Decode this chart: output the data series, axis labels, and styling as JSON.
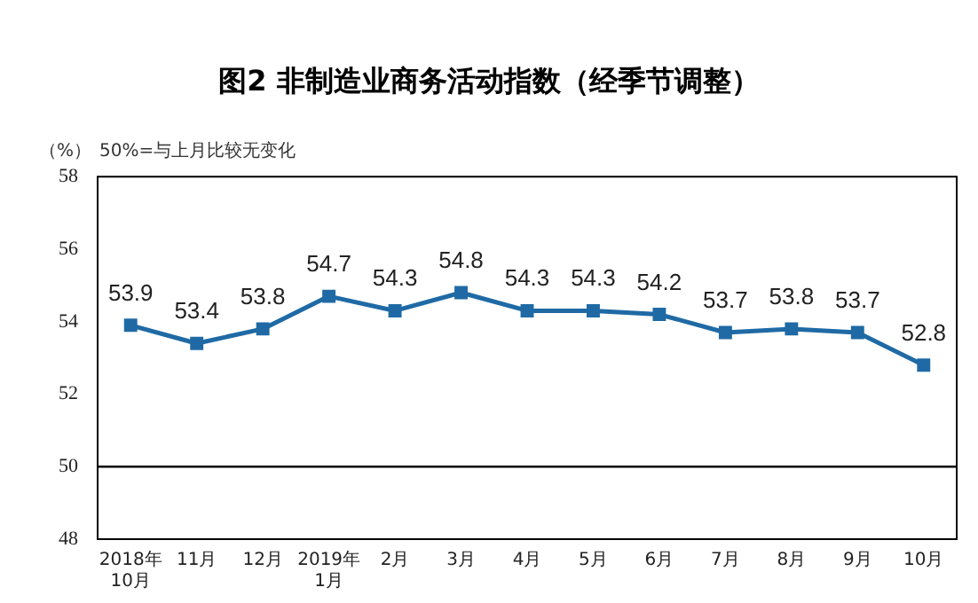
{
  "chart_data": {
    "type": "line",
    "title": "图2  非制造业商务活动指数（经季节调整）",
    "ylabel": "（%）",
    "annotations": [
      "50%=与上月比较无变化"
    ],
    "categories": [
      "2018年\n10月",
      "11月",
      "12月",
      "2019年\n1月",
      "2月",
      "3月",
      "4月",
      "5月",
      "6月",
      "7月",
      "8月",
      "9月",
      "10月"
    ],
    "series": [
      {
        "color": "#1f6aa5",
        "values": [
          53.9,
          53.4,
          53.8,
          54.7,
          54.3,
          54.8,
          54.3,
          54.3,
          54.2,
          53.7,
          53.8,
          53.7,
          52.8
        ]
      }
    ],
    "ylim": [
      48,
      58
    ],
    "yticks": [
      48,
      50,
      52,
      54,
      56,
      58
    ],
    "grid": false,
    "legend": false,
    "marker": "square",
    "data_labels": true,
    "ref_lines": [
      {
        "axis": "y",
        "value": 50,
        "color": "#000000"
      }
    ]
  }
}
